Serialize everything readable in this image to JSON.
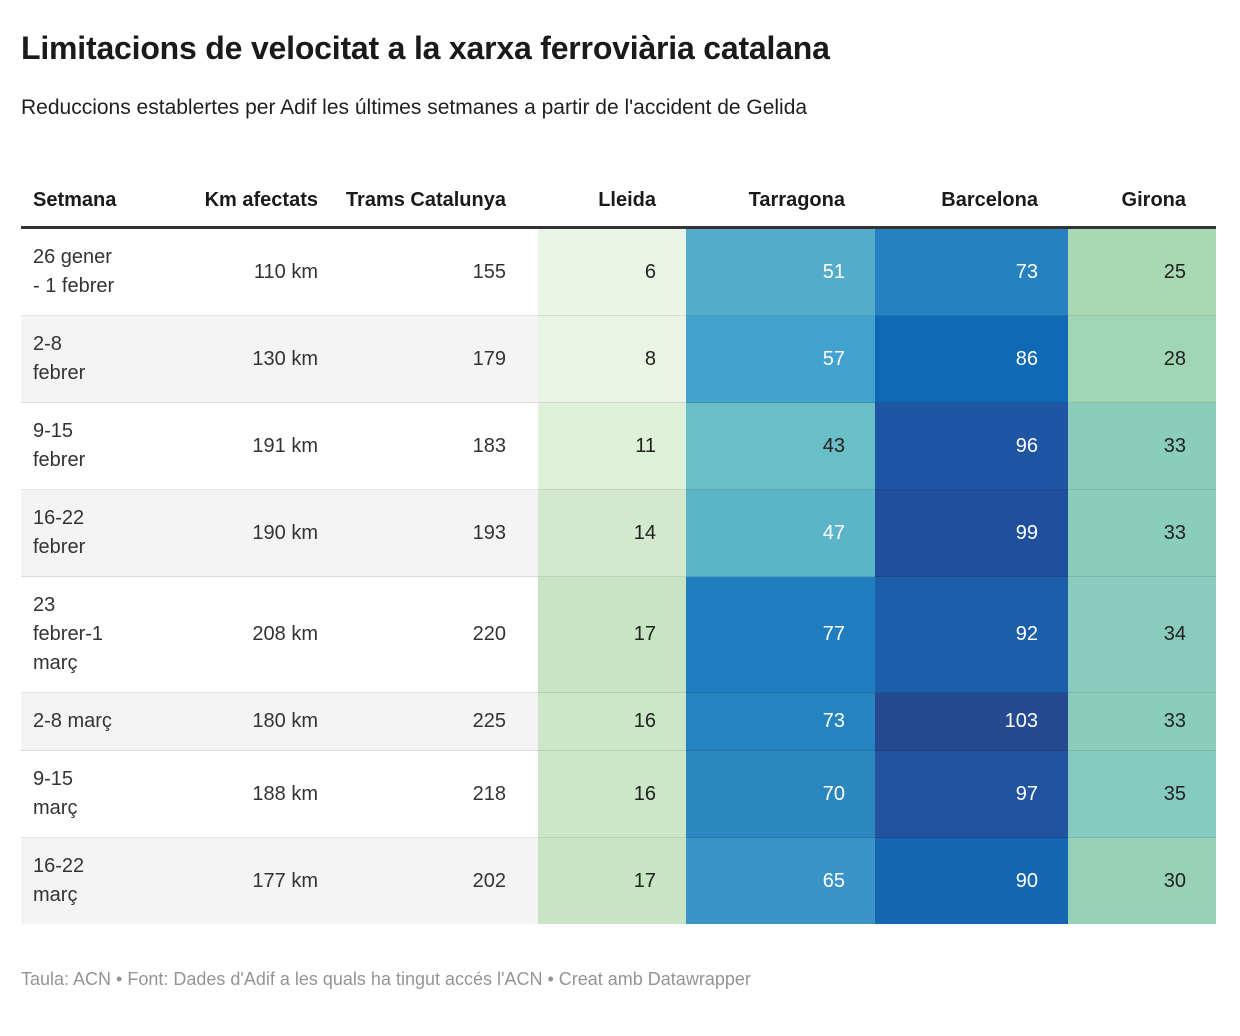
{
  "header": {
    "title": "Limitacions de velocitat a la xarxa ferroviària catalana",
    "subtitle": "Reduccions establertes per Adif les últimes setmanes a partir de l'accident de Gelida"
  },
  "footer": {
    "credit": "Taula: ACN",
    "separator": "•",
    "source": "Font: Dades d'Adif a les quals ha tingut accés l'ACN",
    "created_with": "Creat amb Datawrapper"
  },
  "chart_data": {
    "type": "table",
    "title": "Limitacions de velocitat a la xarxa ferroviària catalana",
    "subtitle": "Reduccions establertes per Adif les últimes setmanes a partir de l'accident de Gelida",
    "heatmap_columns": [
      "Lleida",
      "Tarragona",
      "Barcelona",
      "Girona"
    ],
    "stripe_color": "#f4f4f4",
    "header_rule_color": "#333333",
    "columns": [
      "Setmana",
      "Km afectats",
      "Trams Catalunya",
      "Lleida",
      "Tarragona",
      "Barcelona",
      "Girona"
    ],
    "rows": [
      {
        "setmana": "26 gener\n- 1 febrer",
        "km_afectats": "110 km",
        "trams_catalunya": "155",
        "lleida": {
          "value": 6,
          "bg": "#ebf5e6",
          "fg": "#222222"
        },
        "tarragona": {
          "value": 51,
          "bg": "#54accb",
          "fg": "#ffffff"
        },
        "barcelona": {
          "value": 73,
          "bg": "#2581bf",
          "fg": "#ffffff"
        },
        "girona": {
          "value": 25,
          "bg": "#a8d9b3",
          "fg": "#222222"
        }
      },
      {
        "setmana": "2-8\nfebrer",
        "km_afectats": "130 km",
        "trams_catalunya": "179",
        "lleida": {
          "value": 8,
          "bg": "#e9f4e4",
          "fg": "#222222"
        },
        "tarragona": {
          "value": 57,
          "bg": "#43a2cd",
          "fg": "#ffffff"
        },
        "barcelona": {
          "value": 86,
          "bg": "#0f69b4",
          "fg": "#ffffff"
        },
        "girona": {
          "value": 28,
          "bg": "#a0d6b4",
          "fg": "#222222"
        }
      },
      {
        "setmana": "9-15\nfebrer",
        "km_afectats": "191 km",
        "trams_catalunya": "183",
        "lleida": {
          "value": 11,
          "bg": "#def0d8",
          "fg": "#222222"
        },
        "tarragona": {
          "value": 43,
          "bg": "#6abec6",
          "fg": "#222222"
        },
        "barcelona": {
          "value": 96,
          "bg": "#1f55a2",
          "fg": "#ffffff"
        },
        "girona": {
          "value": 33,
          "bg": "#8bcdbb",
          "fg": "#222222"
        }
      },
      {
        "setmana": "16-22\nfebrer",
        "km_afectats": "190 km",
        "trams_catalunya": "193",
        "lleida": {
          "value": 14,
          "bg": "#d3e9cd",
          "fg": "#222222"
        },
        "tarragona": {
          "value": 47,
          "bg": "#5cb4c9",
          "fg": "#ffffff"
        },
        "barcelona": {
          "value": 99,
          "bg": "#20509d",
          "fg": "#ffffff"
        },
        "girona": {
          "value": 33,
          "bg": "#8bcdbb",
          "fg": "#222222"
        }
      },
      {
        "setmana": "23\nfebrer-1\nmarç",
        "km_afectats": "208 km",
        "trams_catalunya": "220",
        "lleida": {
          "value": 17,
          "bg": "#c8e5c3",
          "fg": "#222222"
        },
        "tarragona": {
          "value": 77,
          "bg": "#1f7dc0",
          "fg": "#ffffff"
        },
        "barcelona": {
          "value": 92,
          "bg": "#1c5fa9",
          "fg": "#ffffff"
        },
        "girona": {
          "value": 34,
          "bg": "#89ccbc",
          "fg": "#222222"
        }
      },
      {
        "setmana": "2-8 març",
        "km_afectats": "180 km",
        "trams_catalunya": "225",
        "lleida": {
          "value": 16,
          "bg": "#cce7c7",
          "fg": "#222222"
        },
        "tarragona": {
          "value": 73,
          "bg": "#2583bf",
          "fg": "#ffffff"
        },
        "barcelona": {
          "value": 103,
          "bg": "#254a92",
          "fg": "#ffffff"
        },
        "girona": {
          "value": 33,
          "bg": "#8bcdbb",
          "fg": "#222222"
        }
      },
      {
        "setmana": "9-15\nmarç",
        "km_afectats": "188 km",
        "trams_catalunya": "218",
        "lleida": {
          "value": 16,
          "bg": "#cce7c7",
          "fg": "#222222"
        },
        "tarragona": {
          "value": 70,
          "bg": "#2c87c1",
          "fg": "#ffffff"
        },
        "barcelona": {
          "value": 97,
          "bg": "#21539f",
          "fg": "#ffffff"
        },
        "girona": {
          "value": 35,
          "bg": "#85cabe",
          "fg": "#222222"
        }
      },
      {
        "setmana": "16-22\nmarç",
        "km_afectats": "177 km",
        "trams_catalunya": "202",
        "lleida": {
          "value": 17,
          "bg": "#c8e5c3",
          "fg": "#222222"
        },
        "tarragona": {
          "value": 65,
          "bg": "#3b94c7",
          "fg": "#ffffff"
        },
        "barcelona": {
          "value": 90,
          "bg": "#1566b0",
          "fg": "#ffffff"
        },
        "girona": {
          "value": 30,
          "bg": "#97d2b7",
          "fg": "#222222"
        }
      }
    ]
  }
}
